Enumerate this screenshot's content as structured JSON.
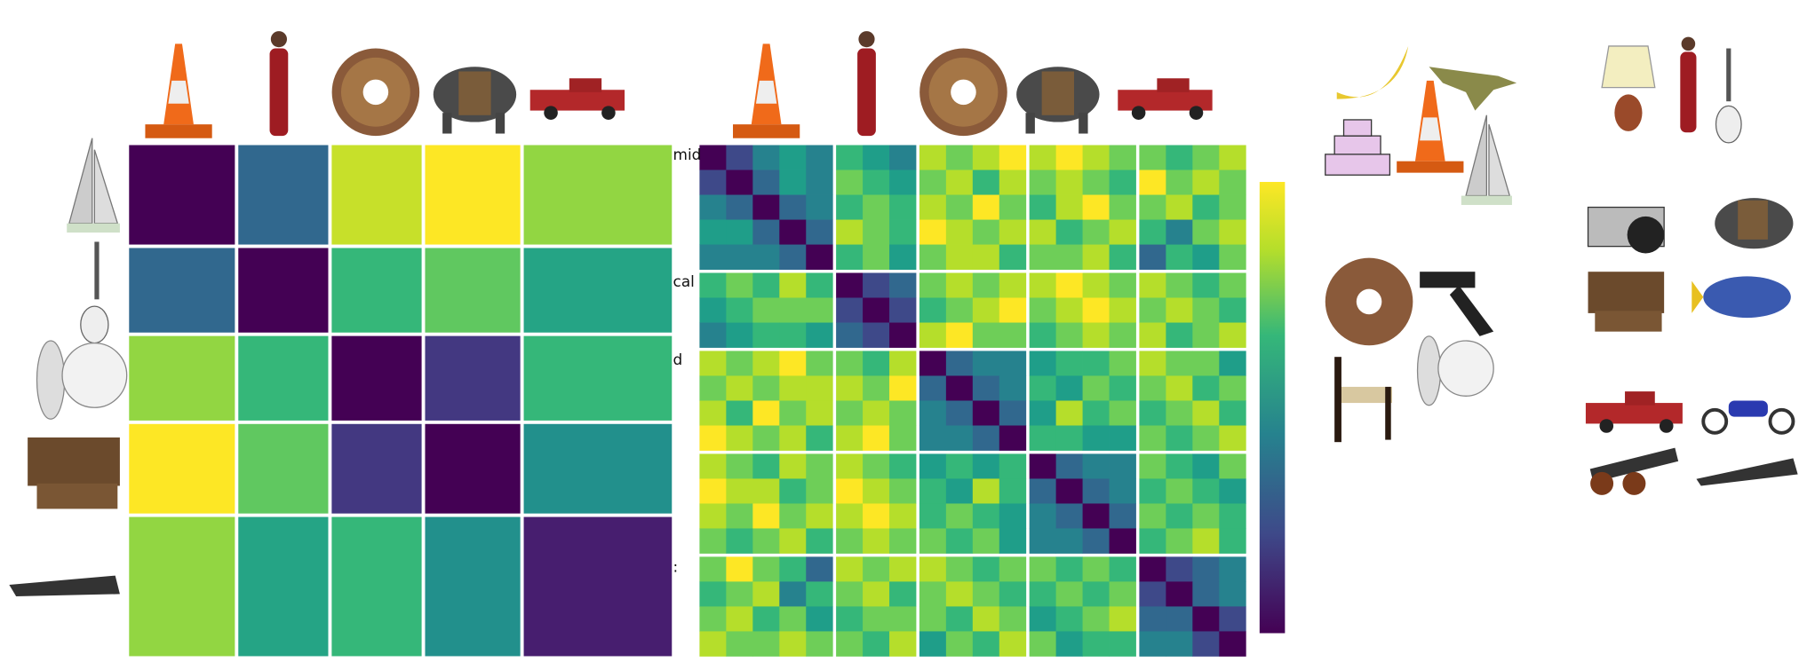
{
  "chart_data": [
    {
      "type": "heatmap",
      "colormap": "viridis",
      "block_sizes": [
        20,
        17,
        17,
        18,
        28
      ],
      "matrix": [
        [
          0.25,
          0.45,
          0.8,
          0.85,
          0.75
        ],
        [
          0.45,
          0.25,
          0.65,
          0.7,
          0.6
        ],
        [
          0.75,
          0.65,
          0.25,
          0.35,
          0.65
        ],
        [
          0.85,
          0.7,
          0.35,
          0.25,
          0.55
        ],
        [
          0.75,
          0.6,
          0.65,
          0.55,
          0.3
        ]
      ]
    },
    {
      "type": "heatmap",
      "colormap": "viridis",
      "colorbar": true,
      "block_sizes": [
        5,
        3,
        4,
        4,
        4
      ],
      "matrix": [
        [
          0,
          0.2,
          0.4,
          0.5,
          0.4,
          0.6,
          0.5,
          0.4,
          0.8,
          0.7,
          0.8,
          0.9,
          0.8,
          0.9,
          0.8,
          0.7,
          0.7,
          0.6,
          0.7,
          0.8
        ],
        [
          0.2,
          0,
          0.3,
          0.5,
          0.4,
          0.7,
          0.6,
          0.5,
          0.7,
          0.8,
          0.6,
          0.8,
          0.7,
          0.8,
          0.7,
          0.6,
          0.9,
          0.7,
          0.8,
          0.7
        ],
        [
          0.4,
          0.3,
          0,
          0.3,
          0.4,
          0.6,
          0.7,
          0.6,
          0.8,
          0.7,
          0.9,
          0.7,
          0.6,
          0.8,
          0.9,
          0.7,
          0.7,
          0.8,
          0.6,
          0.7
        ],
        [
          0.5,
          0.5,
          0.3,
          0,
          0.3,
          0.8,
          0.7,
          0.6,
          0.9,
          0.8,
          0.7,
          0.8,
          0.8,
          0.6,
          0.7,
          0.8,
          0.6,
          0.4,
          0.7,
          0.8
        ],
        [
          0.4,
          0.4,
          0.4,
          0.3,
          0,
          0.6,
          0.7,
          0.5,
          0.7,
          0.8,
          0.8,
          0.6,
          0.7,
          0.7,
          0.8,
          0.6,
          0.3,
          0.6,
          0.5,
          0.7
        ],
        [
          0.6,
          0.7,
          0.6,
          0.8,
          0.6,
          0,
          0.2,
          0.3,
          0.7,
          0.8,
          0.7,
          0.8,
          0.8,
          0.9,
          0.8,
          0.7,
          0.8,
          0.7,
          0.6,
          0.7
        ],
        [
          0.5,
          0.6,
          0.7,
          0.7,
          0.7,
          0.2,
          0,
          0.2,
          0.6,
          0.7,
          0.8,
          0.9,
          0.7,
          0.8,
          0.9,
          0.8,
          0.7,
          0.8,
          0.7,
          0.6
        ],
        [
          0.4,
          0.5,
          0.6,
          0.6,
          0.5,
          0.3,
          0.2,
          0,
          0.8,
          0.9,
          0.7,
          0.7,
          0.6,
          0.7,
          0.8,
          0.7,
          0.8,
          0.6,
          0.7,
          0.8
        ],
        [
          0.8,
          0.7,
          0.8,
          0.9,
          0.7,
          0.7,
          0.6,
          0.8,
          0,
          0.3,
          0.4,
          0.4,
          0.5,
          0.6,
          0.6,
          0.7,
          0.8,
          0.7,
          0.7,
          0.5
        ],
        [
          0.7,
          0.8,
          0.7,
          0.8,
          0.8,
          0.8,
          0.7,
          0.9,
          0.3,
          0,
          0.3,
          0.4,
          0.6,
          0.5,
          0.7,
          0.6,
          0.7,
          0.8,
          0.6,
          0.7
        ],
        [
          0.8,
          0.6,
          0.9,
          0.7,
          0.8,
          0.7,
          0.8,
          0.7,
          0.4,
          0.3,
          0,
          0.3,
          0.5,
          0.8,
          0.6,
          0.7,
          0.6,
          0.7,
          0.8,
          0.6
        ],
        [
          0.9,
          0.8,
          0.7,
          0.8,
          0.6,
          0.8,
          0.9,
          0.7,
          0.4,
          0.4,
          0.3,
          0,
          0.6,
          0.6,
          0.5,
          0.5,
          0.7,
          0.6,
          0.7,
          0.8
        ],
        [
          0.8,
          0.7,
          0.6,
          0.8,
          0.7,
          0.8,
          0.7,
          0.6,
          0.5,
          0.6,
          0.5,
          0.6,
          0,
          0.3,
          0.4,
          0.4,
          0.7,
          0.6,
          0.5,
          0.7
        ],
        [
          0.9,
          0.8,
          0.8,
          0.6,
          0.7,
          0.9,
          0.8,
          0.7,
          0.6,
          0.5,
          0.8,
          0.6,
          0.3,
          0,
          0.3,
          0.4,
          0.6,
          0.7,
          0.6,
          0.5
        ],
        [
          0.8,
          0.7,
          0.9,
          0.7,
          0.8,
          0.8,
          0.9,
          0.8,
          0.6,
          0.7,
          0.6,
          0.5,
          0.4,
          0.3,
          0,
          0.3,
          0.7,
          0.6,
          0.7,
          0.6
        ],
        [
          0.7,
          0.6,
          0.7,
          0.8,
          0.6,
          0.7,
          0.8,
          0.7,
          0.7,
          0.6,
          0.7,
          0.5,
          0.4,
          0.4,
          0.3,
          0,
          0.6,
          0.7,
          0.8,
          0.6
        ],
        [
          0.7,
          0.9,
          0.7,
          0.6,
          0.3,
          0.8,
          0.7,
          0.8,
          0.8,
          0.7,
          0.6,
          0.7,
          0.7,
          0.6,
          0.7,
          0.6,
          0,
          0.2,
          0.3,
          0.4
        ],
        [
          0.6,
          0.7,
          0.8,
          0.4,
          0.6,
          0.7,
          0.8,
          0.6,
          0.7,
          0.8,
          0.7,
          0.6,
          0.6,
          0.7,
          0.6,
          0.7,
          0.2,
          0,
          0.3,
          0.4
        ],
        [
          0.7,
          0.8,
          0.6,
          0.7,
          0.5,
          0.6,
          0.7,
          0.7,
          0.7,
          0.6,
          0.8,
          0.7,
          0.5,
          0.6,
          0.7,
          0.8,
          0.3,
          0.3,
          0,
          0.2
        ],
        [
          0.8,
          0.7,
          0.7,
          0.8,
          0.7,
          0.7,
          0.6,
          0.8,
          0.5,
          0.7,
          0.6,
          0.8,
          0.7,
          0.5,
          0.6,
          0.6,
          0.4,
          0.4,
          0.2,
          0
        ]
      ]
    }
  ],
  "labels": [
    "mid",
    "cal",
    "d",
    ":"
  ]
}
